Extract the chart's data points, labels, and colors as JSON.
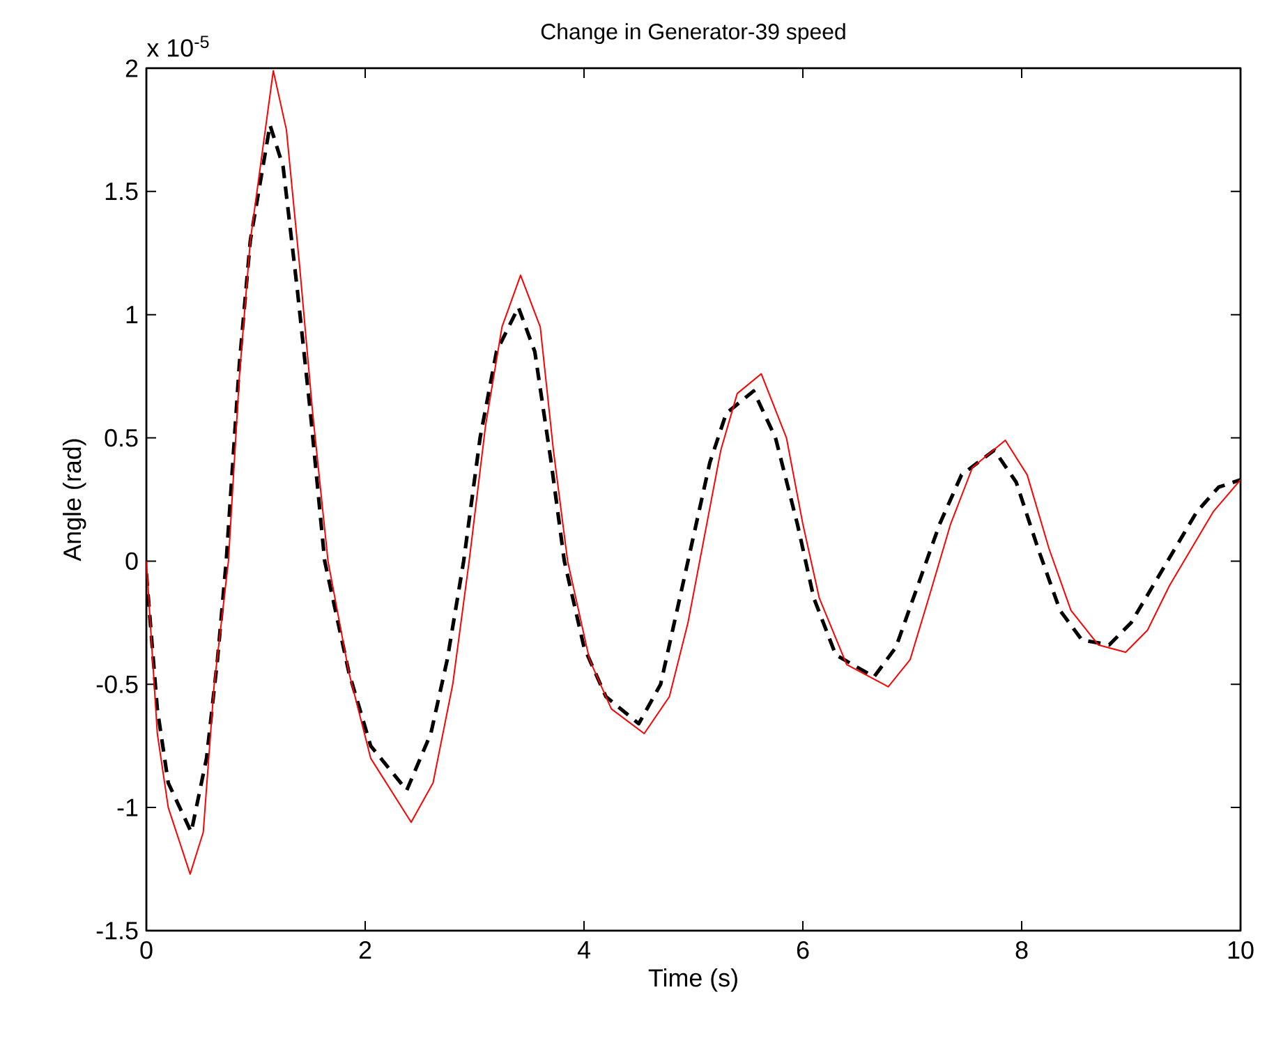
{
  "chart_data": {
    "type": "line",
    "title": "Change in Generator-39 speed",
    "xlabel": "Time (s)",
    "ylabel": "Angle (rad)",
    "annotations": [
      "x 10$^{-5}$"
    ],
    "xlim": [
      0,
      10
    ],
    "ylim": [
      -1.5,
      2
    ],
    "xticks": [
      0,
      2,
      4,
      6,
      8,
      10
    ],
    "yticks": [
      -1.5,
      -1,
      -0.5,
      0,
      0.5,
      1,
      1.5,
      2
    ],
    "marker": "none",
    "series": [
      {
        "color": "#000000",
        "line_style": "dashed",
        "x": [
          0,
          0.1,
          0.2,
          0.41,
          0.55,
          0.65,
          0.73,
          0.85,
          0.95,
          1.13,
          1.25,
          1.38,
          1.5,
          1.63,
          1.85,
          2.05,
          2.38,
          2.6,
          2.75,
          2.9,
          3.05,
          3.2,
          3.4,
          3.55,
          3.7,
          3.82,
          4.0,
          4.2,
          4.5,
          4.7,
          4.85,
          5.0,
          5.15,
          5.3,
          5.55,
          5.75,
          5.95,
          6.1,
          6.3,
          6.65,
          6.85,
          7.05,
          7.25,
          7.45,
          7.75,
          7.95,
          8.15,
          8.35,
          8.55,
          8.8,
          9.0,
          9.2,
          9.4,
          9.6,
          9.8,
          10
        ],
        "values": [
          -0.05,
          -0.6,
          -0.9,
          -1.1,
          -0.8,
          -0.4,
          0,
          0.8,
          1.3,
          1.77,
          1.6,
          1.1,
          0.6,
          0,
          -0.45,
          -0.75,
          -0.93,
          -0.7,
          -0.4,
          0,
          0.5,
          0.85,
          1.03,
          0.85,
          0.4,
          0,
          -0.35,
          -0.55,
          -0.66,
          -0.5,
          -0.2,
          0.1,
          0.4,
          0.6,
          0.69,
          0.5,
          0.15,
          -0.15,
          -0.38,
          -0.47,
          -0.35,
          -0.1,
          0.15,
          0.35,
          0.45,
          0.32,
          0.05,
          -0.2,
          -0.32,
          -0.34,
          -0.25,
          -0.1,
          0.05,
          0.2,
          0.3,
          0.33
        ]
      },
      {
        "color": "#ff0000",
        "line_style": "solid",
        "x": [
          0,
          0.1,
          0.2,
          0.4,
          0.52,
          0.62,
          0.75,
          0.85,
          0.95,
          1.16,
          1.28,
          1.4,
          1.52,
          1.66,
          1.85,
          2.05,
          2.42,
          2.62,
          2.8,
          2.95,
          3.1,
          3.25,
          3.42,
          3.6,
          3.72,
          3.85,
          4.05,
          4.25,
          4.55,
          4.78,
          4.95,
          5.1,
          5.25,
          5.4,
          5.62,
          5.85,
          6.0,
          6.15,
          6.4,
          6.78,
          6.98,
          7.15,
          7.35,
          7.55,
          7.85,
          8.05,
          8.25,
          8.45,
          8.7,
          8.95,
          9.15,
          9.35,
          9.55,
          9.75,
          10
        ],
        "values": [
          0,
          -0.7,
          -1.0,
          -1.27,
          -1.1,
          -0.5,
          0,
          0.75,
          1.3,
          1.99,
          1.75,
          1.2,
          0.6,
          0,
          -0.45,
          -0.8,
          -1.06,
          -0.9,
          -0.5,
          0,
          0.55,
          0.95,
          1.16,
          0.95,
          0.45,
          0,
          -0.4,
          -0.6,
          -0.7,
          -0.55,
          -0.25,
          0.1,
          0.45,
          0.68,
          0.76,
          0.5,
          0.15,
          -0.15,
          -0.42,
          -0.51,
          -0.4,
          -0.15,
          0.15,
          0.38,
          0.49,
          0.35,
          0.05,
          -0.2,
          -0.34,
          -0.37,
          -0.28,
          -0.1,
          0.05,
          0.2,
          0.33
        ]
      }
    ]
  }
}
